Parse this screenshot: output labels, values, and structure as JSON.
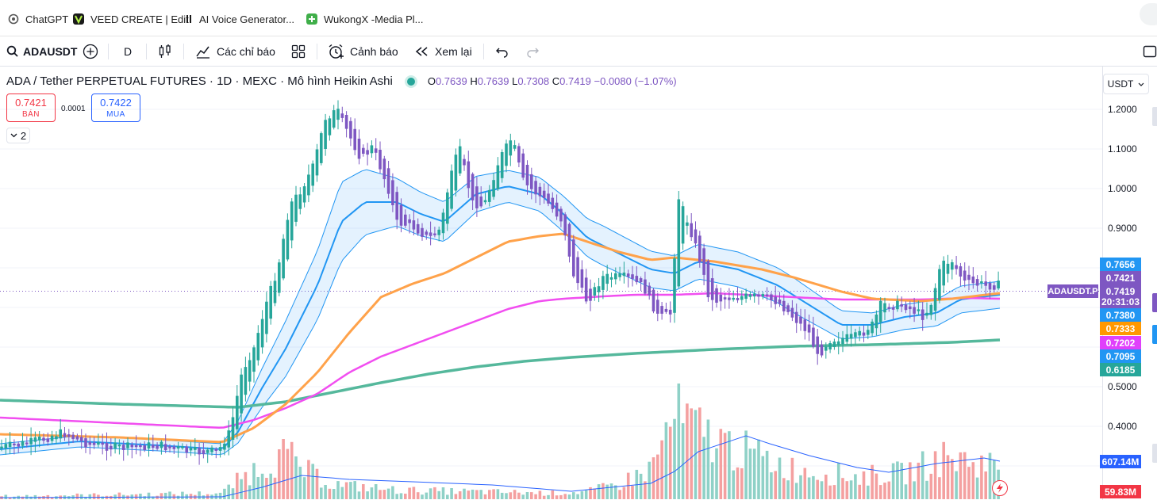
{
  "bookmarks": [
    {
      "label": "ChatGPT",
      "icon": "openai-icon",
      "color": "#555555"
    },
    {
      "label": "VEED CREATE | Edit",
      "icon": "veed-icon",
      "color": "#1a1a1a"
    },
    {
      "label": "AI Voice Generator...",
      "icon": "elevenlabs-icon",
      "color": "#1a1a1a"
    },
    {
      "label": "WukongX -Media Pl...",
      "icon": "wukong-icon",
      "color": "#3fae49"
    }
  ],
  "toolbar": {
    "symbol": "ADAUSDT",
    "interval": "D",
    "indicators_label": "Các chỉ báo",
    "alerts_label": "Cảnh báo",
    "replay_label": "Xem lại"
  },
  "legend": {
    "title": "ADA / Tether PERPETUAL FUTURES · 1D · MEXC · Mô hình Heikin Ashi",
    "o_label": "O",
    "o": "0.7639",
    "h_label": "H",
    "h": "0.7639",
    "l_label": "L",
    "l": "0.7308",
    "c_label": "C",
    "c": "0.7419",
    "change": "−0.0080 (−1.07%)"
  },
  "trade": {
    "sell_price": "0.7421",
    "sell_label": "BÁN",
    "spread": "0.0001",
    "buy_price": "0.7422",
    "buy_label": "MUA",
    "collapse_count": "2"
  },
  "axis": {
    "currency": "USDT",
    "ticks": [
      "1.2000",
      "1.1000",
      "1.0000",
      "0.9000",
      "0.5000",
      "0.4000"
    ]
  },
  "price_tags": [
    {
      "value": "0.7656",
      "color": "#2196f3"
    },
    {
      "value": "0.7421",
      "color": "#7e57c2"
    },
    {
      "value": "0.7419",
      "color": "#7e57c2"
    },
    {
      "value": "0.7380",
      "color": "#2196f3"
    },
    {
      "value": "0.7333",
      "color": "#ff9800"
    },
    {
      "value": "0.7202",
      "color": "#e040fb"
    },
    {
      "value": "0.7095",
      "color": "#2196f3"
    },
    {
      "value": "0.6185",
      "color": "#26a69a"
    }
  ],
  "symbol_tag": "ADAUSDT.P",
  "countdown": "20:31:03",
  "volume_tags": [
    {
      "value": "607.14M",
      "color": "#2962ff"
    },
    {
      "value": "59.83M",
      "color": "#f23645"
    }
  ],
  "colors": {
    "up": "#26a69a",
    "down": "#7e57c2",
    "ema_orange": "#ffa24a",
    "ema_magenta": "#f14ef0",
    "ema_teal": "#55b89c",
    "band": "#2196f3",
    "vol_up": "#8fd1c7",
    "vol_down": "#f4a0a0"
  }
}
